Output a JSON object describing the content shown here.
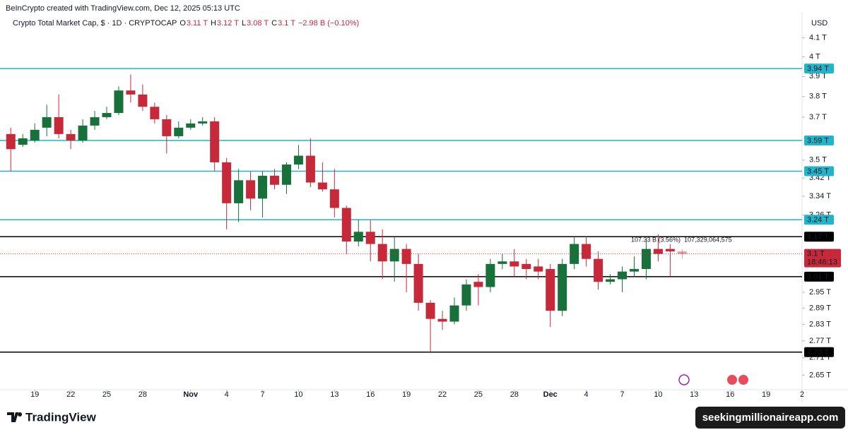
{
  "chart_data": {
    "type": "candlestick",
    "header": "BeInCrypto created with TradingView.com, Dec 12, 2025 05:13 UTC",
    "title": "Crypto Total Market Cap, $ · 1D · CRYPTOCAP",
    "ohlc_legend": [
      {
        "key": "O",
        "text": "3.11 T"
      },
      {
        "key": "H",
        "text": "3.12 T"
      },
      {
        "key": "L",
        "text": "3.08 T"
      },
      {
        "key": "C",
        "text": "3.1 T"
      }
    ],
    "change": "−2.98 B (−0.10%)",
    "currency": "USD",
    "log_scale": true,
    "up_color": "#18703a",
    "down_color": "#c62a3a",
    "open": [
      3.62,
      3.57,
      3.59,
      3.65,
      3.7,
      3.62,
      3.59,
      3.66,
      3.7,
      3.72,
      3.83,
      3.81,
      3.75,
      3.69,
      3.61,
      3.65,
      3.67,
      3.68,
      3.49,
      3.31,
      3.41,
      3.33,
      3.43,
      3.39,
      3.48,
      3.52,
      3.4,
      3.37,
      3.29,
      3.15,
      3.19,
      3.14,
      3.07,
      3.12,
      3.06,
      2.91,
      2.85,
      2.84,
      2.9,
      2.99,
      2.97,
      3.06,
      3.07,
      3.06,
      3.05,
      3.04,
      2.88,
      3.06,
      3.14,
      3.08,
      2.99,
      3.0,
      3.03,
      3.04,
      3.12,
      3.12,
      3.11
    ],
    "high": [
      3.65,
      3.62,
      3.67,
      3.76,
      3.81,
      3.64,
      3.69,
      3.73,
      3.75,
      3.85,
      3.91,
      3.86,
      3.77,
      3.71,
      3.68,
      3.69,
      3.7,
      3.7,
      3.51,
      3.46,
      3.45,
      3.45,
      3.46,
      3.49,
      3.57,
      3.6,
      3.49,
      3.46,
      3.3,
      3.24,
      3.24,
      3.2,
      3.17,
      3.14,
      3.1,
      2.92,
      2.88,
      2.93,
      3.0,
      3.02,
      3.08,
      3.1,
      3.12,
      3.08,
      3.08,
      3.06,
      3.08,
      3.17,
      3.17,
      3.11,
      3.02,
      3.05,
      3.09,
      3.16,
      3.18,
      3.14,
      3.12
    ],
    "low": [
      3.45,
      3.56,
      3.58,
      3.61,
      3.6,
      3.55,
      3.58,
      3.64,
      3.69,
      3.71,
      3.77,
      3.73,
      3.67,
      3.53,
      3.6,
      3.64,
      3.66,
      3.45,
      3.2,
      3.23,
      3.28,
      3.25,
      3.37,
      3.35,
      3.46,
      3.38,
      3.36,
      3.25,
      3.1,
      3.13,
      3.07,
      3.0,
      2.99,
      2.95,
      2.88,
      2.73,
      2.81,
      2.83,
      2.88,
      2.9,
      2.95,
      3.04,
      3.01,
      3.0,
      3.0,
      2.82,
      2.86,
      3.04,
      3.05,
      2.96,
      2.98,
      2.95,
      3.01,
      3.0,
      3.07,
      3.01,
      3.08
    ],
    "close": [
      3.55,
      3.6,
      3.64,
      3.7,
      3.62,
      3.59,
      3.66,
      3.7,
      3.72,
      3.83,
      3.81,
      3.75,
      3.69,
      3.61,
      3.65,
      3.67,
      3.68,
      3.49,
      3.31,
      3.41,
      3.33,
      3.43,
      3.39,
      3.48,
      3.52,
      3.4,
      3.37,
      3.29,
      3.15,
      3.19,
      3.14,
      3.07,
      3.12,
      3.06,
      2.91,
      2.85,
      2.84,
      2.9,
      2.98,
      2.97,
      3.06,
      3.07,
      3.05,
      3.04,
      3.03,
      2.88,
      3.06,
      3.14,
      3.08,
      2.99,
      3.0,
      3.03,
      3.04,
      3.12,
      3.1,
      3.11,
      3.1
    ],
    "xlim": [
      -0.9,
      66
    ],
    "xticks": [
      {
        "value": 2,
        "label": "19"
      },
      {
        "value": 5,
        "label": "22"
      },
      {
        "value": 8,
        "label": "25"
      },
      {
        "value": 11,
        "label": "28"
      },
      {
        "value": 15,
        "label": "Nov"
      },
      {
        "value": 18,
        "label": "4"
      },
      {
        "value": 21,
        "label": "7"
      },
      {
        "value": 24,
        "label": "10"
      },
      {
        "value": 27,
        "label": "13"
      },
      {
        "value": 30,
        "label": "16"
      },
      {
        "value": 33,
        "label": "19"
      },
      {
        "value": 36,
        "label": "22"
      },
      {
        "value": 39,
        "label": "25"
      },
      {
        "value": 42,
        "label": "28"
      },
      {
        "value": 45,
        "label": "Dec"
      },
      {
        "value": 48,
        "label": "4"
      },
      {
        "value": 51,
        "label": "7"
      },
      {
        "value": 54,
        "label": "10"
      },
      {
        "value": 57,
        "label": "13"
      },
      {
        "value": 60,
        "label": "16"
      },
      {
        "value": 63,
        "label": "19"
      },
      {
        "value": 66,
        "label": "2"
      }
    ],
    "ylim": [
      2.61,
      4.22
    ],
    "yticks": [
      {
        "value": 4.1,
        "label": "4.1 T"
      },
      {
        "value": 4,
        "label": "4 T"
      },
      {
        "value": 3.9,
        "label": "3.9 T"
      },
      {
        "value": 3.8,
        "label": "3.8 T"
      },
      {
        "value": 3.7,
        "label": "3.7 T"
      },
      {
        "value": 3.5,
        "label": "3.5 T"
      },
      {
        "value": 3.42,
        "label": "3.42 T"
      },
      {
        "value": 3.34,
        "label": "3.34 T"
      },
      {
        "value": 3.26,
        "label": "3.26 T"
      },
      {
        "value": 2.95,
        "label": "2.95 T"
      },
      {
        "value": 2.89,
        "label": "2.89 T"
      },
      {
        "value": 2.83,
        "label": "2.83 T"
      },
      {
        "value": 2.77,
        "label": "2.77 T"
      },
      {
        "value": 2.71,
        "label": "2.71 T"
      },
      {
        "value": 2.65,
        "label": "2.65 T"
      }
    ],
    "levels": [
      {
        "value": 3.94,
        "label": "3.94 T",
        "color": "#22b5c9"
      },
      {
        "value": 3.59,
        "label": "3.59 T",
        "color": "#22b5c9"
      },
      {
        "value": 3.45,
        "label": "3.45 T",
        "color": "#22b5c9"
      },
      {
        "value": 3.24,
        "label": "3.24 T",
        "color": "#22b5c9"
      },
      {
        "value": 3.17,
        "label": "3.17 T",
        "color": "#000000"
      },
      {
        "value": 3.01,
        "label": "3.01 T",
        "color": "#000000"
      },
      {
        "value": 2.73,
        "label": "2.73 T",
        "color": "#000000"
      }
    ],
    "last_price": {
      "value": 3.1,
      "label": "3.1 T",
      "countdown": "18:46:13"
    },
    "annotation": "107.33 B (3.56%)  107,329,064,575",
    "logo": "TradingView",
    "watermark": "seekingmillionaireapp.com"
  }
}
